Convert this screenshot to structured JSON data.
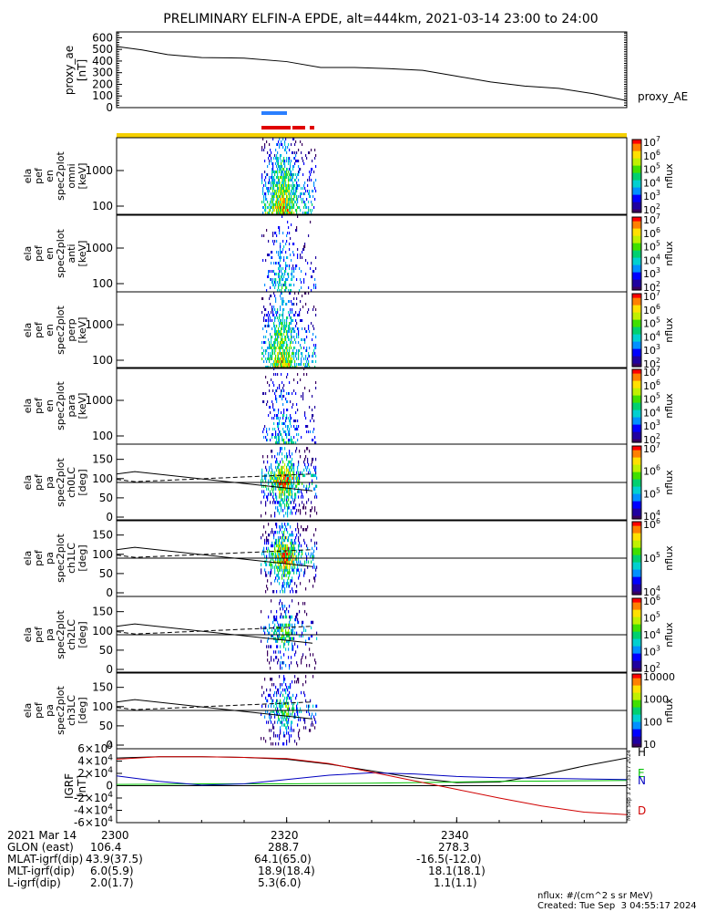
{
  "title": "PRELIMINARY ELFIN-A EPDE, alt=444km, 2021-03-14 23:00 to 24:00",
  "chart_data": [
    {
      "type": "line",
      "name": "proxy_ae",
      "ylabel": [
        "proxy_ae",
        "[nT]"
      ],
      "legend": "proxy_AE",
      "ylim": [
        0,
        650
      ],
      "yticks": [
        "0",
        "100",
        "200",
        "300",
        "400",
        "500",
        "600"
      ],
      "x_minutes": [
        0,
        3,
        6,
        10,
        15,
        20,
        24,
        28,
        32,
        36,
        40,
        44,
        48,
        52,
        56,
        60
      ],
      "values": [
        525,
        495,
        455,
        430,
        425,
        395,
        345,
        345,
        335,
        320,
        270,
        220,
        185,
        165,
        120,
        60
      ]
    },
    {
      "type": "heatmap",
      "name": "spec2plot_omni",
      "ylabel": [
        "ela",
        "pef",
        "en",
        "spec2plot",
        "omni",
        "[keV]"
      ],
      "yticks": [
        "100",
        "1000"
      ],
      "zlabel": "nflux",
      "zticks": [
        "10^2",
        "10^3",
        "10^4",
        "10^5",
        "10^6",
        "10^7"
      ]
    },
    {
      "type": "heatmap",
      "name": "spec2plot_anti",
      "ylabel": [
        "ela",
        "pef",
        "en",
        "spec2plot",
        "anti",
        "[keV]"
      ],
      "yticks": [
        "100",
        "1000"
      ],
      "zlabel": "nflux",
      "zticks": [
        "10^2",
        "10^3",
        "10^4",
        "10^5",
        "10^6",
        "10^7"
      ]
    },
    {
      "type": "heatmap",
      "name": "spec2plot_perp",
      "ylabel": [
        "ela",
        "pef",
        "en",
        "spec2plot",
        "perp",
        "[keV]"
      ],
      "yticks": [
        "100",
        "1000"
      ],
      "zlabel": "nflux",
      "zticks": [
        "10^2",
        "10^3",
        "10^4",
        "10^5",
        "10^6",
        "10^7"
      ]
    },
    {
      "type": "heatmap",
      "name": "spec2plot_para",
      "ylabel": [
        "ela",
        "pef",
        "en",
        "spec2plot",
        "para",
        "[keV]"
      ],
      "yticks": [
        "100",
        "1000"
      ],
      "zlabel": "nflux",
      "zticks": [
        "10^2",
        "10^3",
        "10^4",
        "10^5",
        "10^6",
        "10^7"
      ]
    },
    {
      "type": "heatmap",
      "name": "spec2plot_ch0LC",
      "ylabel": [
        "ela",
        "pef",
        "pa",
        "spec2plot",
        "ch0LC",
        "[deg]"
      ],
      "yticks": [
        "0",
        "50",
        "100",
        "150"
      ],
      "zlabel": "nflux",
      "zticks": [
        "10^4",
        "10^5",
        "10^6",
        "10^7"
      ]
    },
    {
      "type": "heatmap",
      "name": "spec2plot_ch1LC",
      "ylabel": [
        "ela",
        "pef",
        "pa",
        "spec2plot",
        "ch1LC",
        "[deg]"
      ],
      "yticks": [
        "0",
        "50",
        "100",
        "150"
      ],
      "zlabel": "nflux",
      "zticks": [
        "10^4",
        "10^5",
        "10^6"
      ]
    },
    {
      "type": "heatmap",
      "name": "spec2plot_ch2LC",
      "ylabel": [
        "ela",
        "pef",
        "pa",
        "spec2plot",
        "ch2LC",
        "[deg]"
      ],
      "yticks": [
        "0",
        "50",
        "100",
        "150"
      ],
      "zlabel": "nflux",
      "zticks": [
        "10^2",
        "10^3",
        "10^4",
        "10^5",
        "10^6"
      ]
    },
    {
      "type": "heatmap",
      "name": "spec2plot_ch3LC",
      "ylabel": [
        "ela",
        "pef",
        "pa",
        "spec2plot",
        "ch3LC",
        "[deg]"
      ],
      "yticks": [
        "0",
        "50",
        "100",
        "150"
      ],
      "zlabel": "nflux",
      "zticks": [
        "10",
        "100",
        "1000",
        "10000"
      ]
    },
    {
      "type": "line",
      "name": "IGRF",
      "ylabel": [
        "IGRF",
        "[nT]"
      ],
      "ylim": [
        -60000,
        60000
      ],
      "yticks": [
        "-6×10^4",
        "-4×10^4",
        "-2×10^4",
        "0",
        "2×10^4",
        "4×10^4",
        "6×10^4"
      ],
      "legend": [
        "H",
        "E",
        "N",
        "D"
      ],
      "x_minutes": [
        0,
        5,
        10,
        15,
        20,
        25,
        30,
        35,
        40,
        45,
        50,
        55,
        60
      ],
      "series": [
        {
          "name": "H",
          "color": "#000000",
          "values": [
            45000,
            47000,
            47000,
            46000,
            43000,
            35000,
            24000,
            13000,
            5000,
            6000,
            17000,
            32000,
            45000
          ]
        },
        {
          "name": "E",
          "color": "#00c000",
          "values": [
            2000,
            2500,
            3000,
            3000,
            3000,
            3500,
            4000,
            5000,
            6000,
            7000,
            7500,
            8000,
            8500
          ]
        },
        {
          "name": "N",
          "color": "#0000c0",
          "values": [
            16000,
            7000,
            1000,
            3000,
            10000,
            17000,
            21000,
            19000,
            15000,
            13000,
            12000,
            11000,
            10000
          ]
        },
        {
          "name": "D",
          "color": "#d00000",
          "values": [
            43000,
            47000,
            47000,
            46000,
            44000,
            36000,
            22000,
            8000,
            -6000,
            -20000,
            -33000,
            -43000,
            -47000
          ]
        }
      ]
    }
  ],
  "footer": {
    "rows": [
      {
        "label": "2021 Mar 14",
        "values": [
          "2300",
          "2320",
          "2340"
        ]
      },
      {
        "label": "GLON (east)",
        "values": [
          "106.4",
          "288.7",
          "278.3"
        ]
      },
      {
        "label": "MLAT-igrf(dip)",
        "values": [
          "43.9(37.5)",
          "64.1(65.0)",
          "-16.5(-12.0)"
        ]
      },
      {
        "label": "MLT-igrf(dip)",
        "values": [
          "6.0(5.9)",
          "18.9(18.4)",
          "18.1(18.1)"
        ]
      },
      {
        "label": "L-igrf(dip)",
        "values": [
          "2.0(1.7)",
          "5.3(6.0)",
          "1.1(1.1)"
        ]
      }
    ],
    "units_note": "nflux: #/(cm^2 s sr MeV)",
    "created": "Created: Tue Sep  3 04:55:17 2024",
    "vertical_stamp": "Mon Sep  3 21:35:17 2024"
  }
}
